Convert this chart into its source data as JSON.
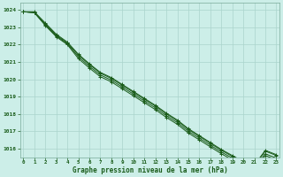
{
  "x": [
    0,
    1,
    2,
    3,
    4,
    5,
    6,
    7,
    8,
    9,
    10,
    11,
    12,
    13,
    14,
    15,
    16,
    17,
    18,
    19,
    20,
    21,
    22,
    23
  ],
  "line1": [
    1023.9,
    1023.85,
    1023.2,
    1022.55,
    1022.1,
    1021.4,
    1020.85,
    1020.35,
    1020.05,
    1019.65,
    1019.25,
    1018.85,
    1018.45,
    1018.0,
    1017.6,
    1017.1,
    1016.7,
    1016.3,
    1015.9,
    1015.55,
    1015.2,
    1015.0,
    1015.85,
    1015.6
  ],
  "line2": [
    1023.9,
    1023.85,
    1023.15,
    1022.5,
    1022.05,
    1021.3,
    1020.75,
    1020.25,
    1019.95,
    1019.55,
    1019.15,
    1018.75,
    1018.35,
    1017.9,
    1017.5,
    1017.0,
    1016.6,
    1016.2,
    1015.8,
    1015.45,
    1015.1,
    1014.9,
    1015.7,
    1015.45
  ],
  "line3": [
    1023.9,
    1023.85,
    1023.1,
    1022.45,
    1022.0,
    1021.2,
    1020.65,
    1020.15,
    1019.85,
    1019.45,
    1019.05,
    1018.65,
    1018.25,
    1017.8,
    1017.4,
    1016.9,
    1016.5,
    1016.1,
    1015.7,
    1015.35,
    1015.0,
    1014.8,
    1015.6,
    1015.35
  ],
  "line4": [
    1023.9,
    1023.9,
    1023.25,
    1022.6,
    1022.15,
    1021.45,
    1020.9,
    1020.4,
    1020.1,
    1019.7,
    1019.3,
    1018.9,
    1018.5,
    1018.05,
    1017.65,
    1017.15,
    1016.75,
    1016.35,
    1015.95,
    1015.6,
    1015.25,
    1015.05,
    1015.9,
    1015.65
  ],
  "bg_color": "#cceee8",
  "line_color": "#1a5c1a",
  "grid_color": "#aad4cc",
  "xlabel": "Graphe pression niveau de la mer (hPa)",
  "yticks": [
    1016,
    1017,
    1018,
    1019,
    1020,
    1021,
    1022,
    1023,
    1024
  ],
  "xticks": [
    0,
    1,
    2,
    3,
    4,
    5,
    6,
    7,
    8,
    9,
    10,
    11,
    12,
    13,
    14,
    15,
    16,
    17,
    18,
    19,
    20,
    21,
    22,
    23
  ],
  "ylim": [
    1015.5,
    1024.4
  ],
  "xlim": [
    -0.3,
    23.3
  ],
  "tick_color": "#1a5c1a",
  "label_color": "#1a5c1a",
  "spine_color": "#7aaa9a"
}
